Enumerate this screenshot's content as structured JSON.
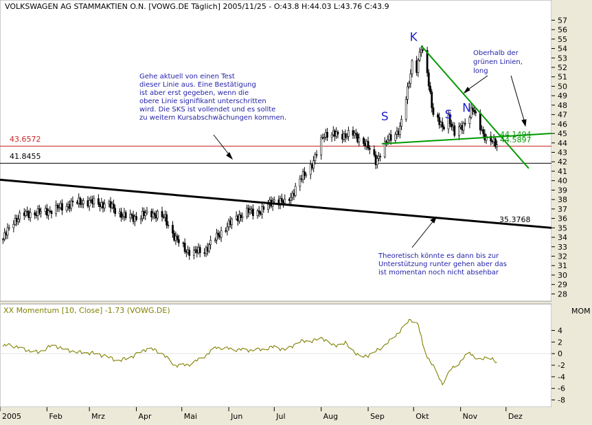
{
  "chart_data": [
    {
      "type": "candlestick",
      "title": "VOLKSWAGEN AG STAMMAKTIEN O.N. [VOWG.DE  Täglich] 2005/11/25 - O:43.8 H:44.03 L:43.76 C:43.9",
      "yticks": [
        28,
        29,
        30,
        31,
        32,
        33,
        34,
        35,
        36,
        37,
        38,
        39,
        40,
        41,
        42,
        43,
        44,
        45,
        46,
        47,
        48,
        49,
        50,
        51,
        52,
        53,
        54,
        55,
        56,
        57
      ],
      "ylim": [
        27.3,
        57.9
      ],
      "x_range": [
        "2005-01-01",
        "2005-12-31"
      ],
      "x_months": [
        "2005",
        "Feb",
        "Mrz",
        "Apr",
        "Mai",
        "Jun",
        "Jul",
        "Aug",
        "Sep",
        "Okt",
        "Nov",
        "Dez"
      ],
      "price_anchors": [
        [
          "2005-01-03",
          33.8
        ],
        [
          "2005-01-10",
          35.8
        ],
        [
          "2005-01-18",
          36.5
        ],
        [
          "2005-01-28",
          36.6
        ],
        [
          "2005-02-07",
          37.0
        ],
        [
          "2005-02-16",
          37.5
        ],
        [
          "2005-02-25",
          37.8
        ],
        [
          "2005-03-07",
          37.6
        ],
        [
          "2005-03-14",
          37.4
        ],
        [
          "2005-03-24",
          36.2
        ],
        [
          "2005-04-01",
          36.1
        ],
        [
          "2005-04-11",
          36.6
        ],
        [
          "2005-04-20",
          36.0
        ],
        [
          "2005-04-27",
          33.8
        ],
        [
          "2005-05-04",
          32.6
        ],
        [
          "2005-05-09",
          32.4
        ],
        [
          "2005-05-16",
          32.6
        ],
        [
          "2005-05-26",
          34.4
        ],
        [
          "2005-06-06",
          36.1
        ],
        [
          "2005-06-14",
          36.7
        ],
        [
          "2005-06-23",
          36.8
        ],
        [
          "2005-07-01",
          38.0
        ],
        [
          "2005-07-08",
          37.6
        ],
        [
          "2005-07-13",
          38.6
        ],
        [
          "2005-07-20",
          40.5
        ],
        [
          "2005-07-27",
          42.0
        ],
        [
          "2005-08-03",
          45.0
        ],
        [
          "2005-08-12",
          44.8
        ],
        [
          "2005-08-22",
          44.9
        ],
        [
          "2005-08-30",
          44.0
        ],
        [
          "2005-09-06",
          42.1
        ],
        [
          "2005-09-14",
          44.3
        ],
        [
          "2005-09-22",
          45.5
        ],
        [
          "2005-09-27",
          49.5
        ],
        [
          "2005-09-30",
          52.6
        ],
        [
          "2005-10-03",
          51.9
        ],
        [
          "2005-10-06",
          54.0
        ],
        [
          "2005-10-10",
          51.5
        ],
        [
          "2005-10-14",
          47.0
        ],
        [
          "2005-10-20",
          45.6
        ],
        [
          "2005-10-24",
          46.8
        ],
        [
          "2005-10-28",
          44.9
        ],
        [
          "2005-11-03",
          46.0
        ],
        [
          "2005-11-09",
          47.5
        ],
        [
          "2005-11-14",
          45.8
        ],
        [
          "2005-11-18",
          44.3
        ],
        [
          "2005-11-25",
          43.9
        ]
      ],
      "trendlines": [
        {
          "name": "neckline",
          "color": "#009900",
          "from": [
            "2005-09-10",
            43.9
          ],
          "to": [
            "2005-12-31",
            45.0
          ]
        },
        {
          "name": "downtrend",
          "color": "#009900",
          "from": [
            "2005-10-06",
            54.3
          ],
          "to": [
            "2005-12-16",
            41.3
          ]
        },
        {
          "name": "long-term",
          "color": "#000000",
          "from": [
            "2005-01-01",
            40.1
          ],
          "to": [
            "2005-12-31",
            35.0
          ]
        },
        {
          "name": "level-red",
          "color": "#cc2222",
          "level": 43.6572
        },
        {
          "name": "level-black",
          "color": "#000000",
          "level": 41.8455
        }
      ],
      "labels": {
        "red_level": "43.6572",
        "black_level": "41.8455",
        "long_term_level": "35.3768",
        "neck_value_1": "44.1494",
        "neck_value_2": "44.5897"
      },
      "pattern_letters": [
        {
          "text": "S",
          "x": "2005-09-12",
          "y": 46.4
        },
        {
          "text": "K",
          "x": "2005-10-01",
          "y": 54.8
        },
        {
          "text": "S",
          "x": "2005-10-24",
          "y": 46.6
        },
        {
          "text": "N",
          "x": "2005-11-05",
          "y": 47.3
        }
      ],
      "annotations": [
        {
          "id": "note-test",
          "lines": [
            "Gehe aktuell von einen Test",
            "dieser Linie aus. Eine Bestätigung",
            "ist aber erst gegeben, wenn die",
            "obere Linie signifikant unterschritten",
            "wird. Die SKS ist vollendet und es sollte",
            "zu weitern Kursabschwächungen kommen."
          ],
          "color": "#1f1fa8"
        },
        {
          "id": "note-long",
          "lines": [
            "Oberhalb der",
            "grünen Linien,",
            "long"
          ],
          "color": "#1f1fa8"
        },
        {
          "id": "note-support",
          "lines": [
            "Theoretisch könnte es dann bis zur",
            "Unterstützung runter gehen aber das",
            "ist momentan noch nicht absehbar"
          ],
          "color": "#1f1fa8"
        }
      ],
      "colors": {
        "up": "#ffffff",
        "down": "#000000",
        "wick": "#000000",
        "background": "#ffffff"
      }
    },
    {
      "type": "line",
      "title": "XX Momentum [10, Close] -1.73 (VOWG.DE)",
      "axis_label": "MOM",
      "yticks": [
        -8,
        -6,
        -4,
        -2,
        0,
        2,
        4
      ],
      "ylim": [
        -9,
        6.2
      ],
      "color": "#808000",
      "momentum_anchors": [
        [
          "2005-01-01",
          1.0
        ],
        [
          "2005-01-07",
          1.6
        ],
        [
          "2005-01-17",
          0.7
        ],
        [
          "2005-01-26",
          0.2
        ],
        [
          "2005-02-05",
          1.5
        ],
        [
          "2005-02-14",
          0.6
        ],
        [
          "2005-02-23",
          0.2
        ],
        [
          "2005-03-03",
          0.1
        ],
        [
          "2005-03-12",
          -0.4
        ],
        [
          "2005-03-20",
          -1.3
        ],
        [
          "2005-03-30",
          -0.4
        ],
        [
          "2005-04-09",
          1.0
        ],
        [
          "2005-04-18",
          0.1
        ],
        [
          "2005-04-26",
          -2.0
        ],
        [
          "2005-05-04",
          -2.0
        ],
        [
          "2005-05-14",
          -0.8
        ],
        [
          "2005-05-24",
          1.1
        ],
        [
          "2005-06-03",
          0.8
        ],
        [
          "2005-06-13",
          0.6
        ],
        [
          "2005-06-22",
          0.7
        ],
        [
          "2005-07-01",
          1.2
        ],
        [
          "2005-07-09",
          0.6
        ],
        [
          "2005-07-17",
          2.1
        ],
        [
          "2005-07-26",
          2.2
        ],
        [
          "2005-08-02",
          2.7
        ],
        [
          "2005-08-09",
          1.4
        ],
        [
          "2005-08-17",
          1.8
        ],
        [
          "2005-08-27",
          -0.7
        ],
        [
          "2005-09-04",
          0.0
        ],
        [
          "2005-09-14",
          1.9
        ],
        [
          "2005-09-24",
          4.4
        ],
        [
          "2005-09-29",
          6.0
        ],
        [
          "2005-10-04",
          5.0
        ],
        [
          "2005-10-08",
          0.5
        ],
        [
          "2005-10-13",
          -1.8
        ],
        [
          "2005-10-20",
          -5.2
        ],
        [
          "2005-10-26",
          -2.6
        ],
        [
          "2005-11-01",
          -1.4
        ],
        [
          "2005-11-07",
          0.3
        ],
        [
          "2005-11-13",
          -1.4
        ],
        [
          "2005-11-19",
          -0.3
        ],
        [
          "2005-11-25",
          -1.73
        ]
      ]
    }
  ]
}
